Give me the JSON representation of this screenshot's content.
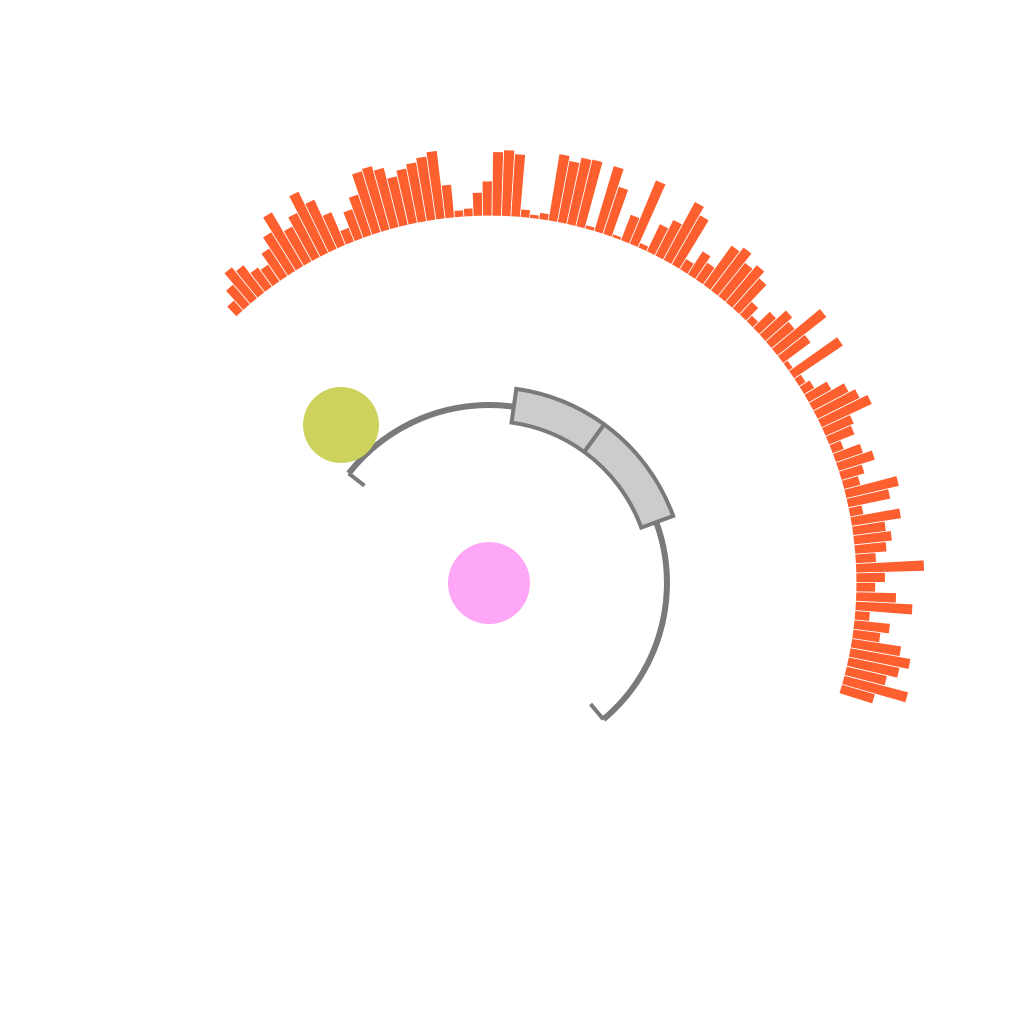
{
  "figure": {
    "background": "#ffffff"
  },
  "histogram": {
    "color": "#fe5f2f",
    "start_deg": -43.5,
    "end_deg": 107.5,
    "values": [
      0.2,
      0.38,
      0.58,
      0.5,
      0.35,
      0.3,
      0.48,
      0.66,
      0.9,
      0.58,
      0.72,
      0.98,
      0.78,
      0.52,
      0.22,
      0.45,
      0.62,
      0.92,
      0.95,
      0.88,
      0.72,
      0.8,
      0.86,
      0.92,
      0.98,
      0.48,
      0.1,
      0.12,
      0.34,
      0.5,
      0.92,
      0.95,
      0.9,
      0.12,
      0.06,
      0.1,
      0.97,
      0.9,
      0.98,
      0.99,
      0.06,
      0.98,
      0.72,
      0.05,
      0.4,
      0.99,
      0.08,
      0.44,
      0.58,
      0.95,
      0.82,
      0.18,
      0.4,
      0.3,
      0.7,
      0.78,
      0.62,
      0.7,
      0.58,
      0.26,
      0.12,
      0.34,
      0.52,
      0.44,
      0.9,
      0.5,
      0.08,
      0.85,
      0.12,
      0.18,
      0.38,
      0.58,
      0.68,
      0.8,
      0.45,
      0.4,
      0.18,
      0.42,
      0.55,
      0.35,
      0.25,
      0.78,
      0.62,
      0.2,
      0.72,
      0.48,
      0.55,
      0.46,
      0.3,
      0.98,
      0.42,
      0.28,
      0.58,
      0.82,
      0.22,
      0.52,
      0.4,
      0.72,
      0.88,
      0.75,
      0.6,
      0.95,
      0.5
    ]
  },
  "track": {
    "line_color": "#7a7a7a",
    "box_fill": "#cccccc",
    "line_start_deg": -52,
    "line_end_deg": 140,
    "segments": [
      {
        "start_deg": 8,
        "end_deg": 36
      },
      {
        "start_deg": 36,
        "end_deg": 70
      }
    ]
  },
  "markers": {
    "center_dot_color": "#fea7f6",
    "side_dot_color": "#cdd25c"
  }
}
